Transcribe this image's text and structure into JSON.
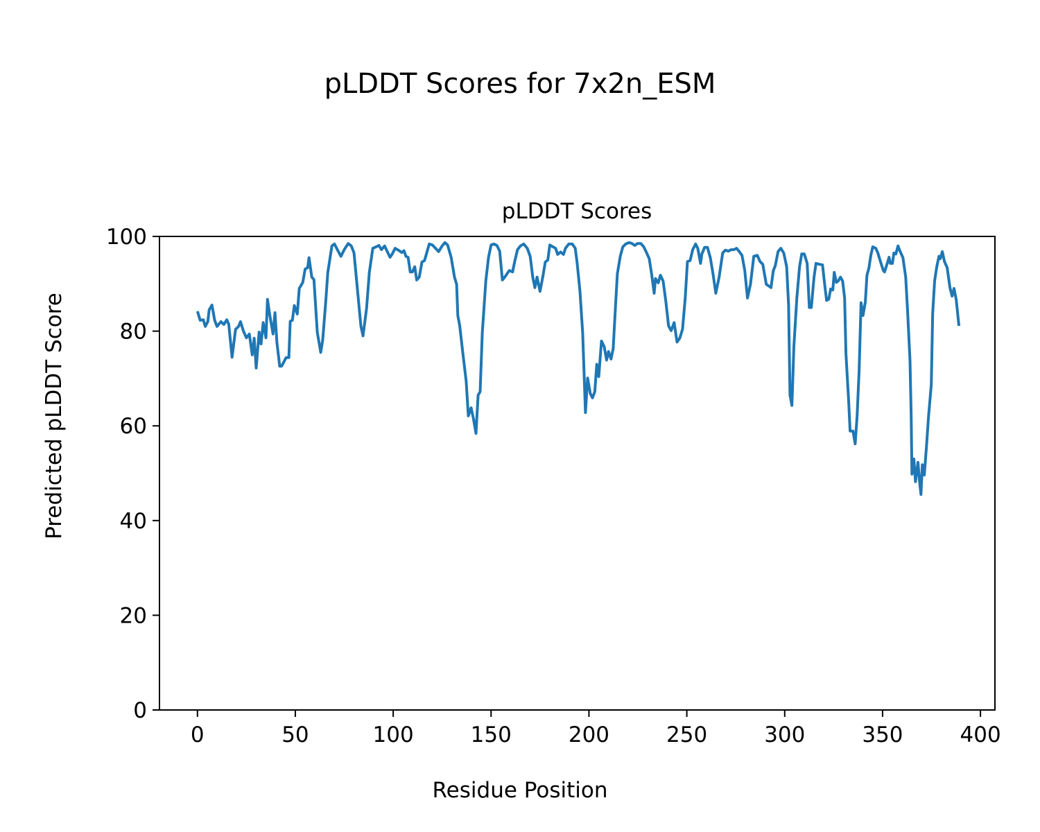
{
  "figure_title": "pLDDT Scores for 7x2n_ESM",
  "chart_data": {
    "type": "line",
    "title": "pLDDT Scores",
    "xlabel": "Residue Position",
    "ylabel": "Predicted pLDDT Score",
    "xlim": [
      -19.4,
      407.4
    ],
    "ylim": [
      0,
      100
    ],
    "xticks": [
      0,
      50,
      100,
      150,
      200,
      250,
      300,
      350,
      400
    ],
    "xtick_labels": [
      "0",
      "50",
      "100",
      "150",
      "200",
      "250",
      "300",
      "350",
      "400"
    ],
    "yticks": [
      0,
      20,
      40,
      60,
      80,
      100
    ],
    "ytick_labels": [
      "0",
      "20",
      "40",
      "60",
      "80",
      "100"
    ],
    "grid": false,
    "line_color": "#1f77b4",
    "series": [
      {
        "name": "pLDDT",
        "points": [
          [
            0,
            84.2
          ],
          [
            1.4,
            82.3
          ],
          [
            3,
            82.4
          ],
          [
            4,
            81
          ],
          [
            5.3,
            82
          ],
          [
            6,
            84.5
          ],
          [
            7.4,
            85.5
          ],
          [
            8.8,
            82.3
          ],
          [
            10,
            81
          ],
          [
            12,
            82
          ],
          [
            13.5,
            81.4
          ],
          [
            15,
            82.4
          ],
          [
            16,
            81.5
          ],
          [
            17.7,
            74.5
          ],
          [
            19.5,
            80.4
          ],
          [
            21,
            81
          ],
          [
            22,
            82
          ],
          [
            23.5,
            80
          ],
          [
            25,
            78.6
          ],
          [
            26.5,
            79.4
          ],
          [
            28,
            75
          ],
          [
            29,
            78.5
          ],
          [
            30,
            72.2
          ],
          [
            31.5,
            79.8
          ],
          [
            32.5,
            77.3
          ],
          [
            33.6,
            81.8
          ],
          [
            35,
            78.6
          ],
          [
            35.8,
            86.7
          ],
          [
            37,
            83.3
          ],
          [
            38.6,
            79.4
          ],
          [
            39.6,
            83.9
          ],
          [
            40.6,
            77.6
          ],
          [
            42,
            72.6
          ],
          [
            43,
            72.6
          ],
          [
            45.3,
            74.4
          ],
          [
            46.7,
            74.4
          ],
          [
            47.4,
            82.1
          ],
          [
            48.5,
            82.3
          ],
          [
            49.5,
            85.4
          ],
          [
            51,
            83.6
          ],
          [
            52,
            89
          ],
          [
            53.8,
            90.3
          ],
          [
            55,
            93.1
          ],
          [
            56.3,
            93.4
          ],
          [
            57,
            95.5
          ],
          [
            58.4,
            91.4
          ],
          [
            59.5,
            90.9
          ],
          [
            61.2,
            79.8
          ],
          [
            63,
            75.5
          ],
          [
            64,
            78.2
          ],
          [
            65.5,
            86
          ],
          [
            66.6,
            92.4
          ],
          [
            68.7,
            98
          ],
          [
            70,
            98.4
          ],
          [
            71.5,
            97.2
          ],
          [
            73.3,
            95.8
          ],
          [
            75,
            97.2
          ],
          [
            77,
            98.5
          ],
          [
            78.6,
            98
          ],
          [
            80,
            96.5
          ],
          [
            82,
            87.6
          ],
          [
            83.5,
            81.1
          ],
          [
            84.6,
            79
          ],
          [
            86.4,
            84.8
          ],
          [
            87.8,
            92.4
          ],
          [
            89.6,
            97.5
          ],
          [
            91.3,
            97.8
          ],
          [
            92.7,
            98.1
          ],
          [
            94,
            97.2
          ],
          [
            95.6,
            98
          ],
          [
            97,
            96.8
          ],
          [
            98.4,
            95.6
          ],
          [
            99.5,
            96.3
          ],
          [
            101,
            97.5
          ],
          [
            103,
            97
          ],
          [
            104.4,
            96.6
          ],
          [
            105.5,
            97
          ],
          [
            106.5,
            95.8
          ],
          [
            107.6,
            95.6
          ],
          [
            108.7,
            92.5
          ],
          [
            109.8,
            92.5
          ],
          [
            111,
            93.6
          ],
          [
            112,
            90.8
          ],
          [
            113.3,
            91.4
          ],
          [
            114.7,
            94.6
          ],
          [
            116,
            94.9
          ],
          [
            118.4,
            98.4
          ],
          [
            120,
            98.2
          ],
          [
            121.4,
            97.6
          ],
          [
            123.2,
            96.8
          ],
          [
            125,
            98
          ],
          [
            126.4,
            98.7
          ],
          [
            127.8,
            98.2
          ],
          [
            129.6,
            95.6
          ],
          [
            131.3,
            91.4
          ],
          [
            132.4,
            89.9
          ],
          [
            133,
            83.3
          ],
          [
            134,
            81.1
          ],
          [
            135.6,
            75.3
          ],
          [
            137.3,
            69.4
          ],
          [
            138.4,
            62.1
          ],
          [
            139.8,
            63.8
          ],
          [
            141,
            61.5
          ],
          [
            142.3,
            58.4
          ],
          [
            143.4,
            66.5
          ],
          [
            144.4,
            67.2
          ],
          [
            145.5,
            79.6
          ],
          [
            147.3,
            90.6
          ],
          [
            148.7,
            95.6
          ],
          [
            150,
            98.2
          ],
          [
            151.5,
            98.4
          ],
          [
            153,
            98.1
          ],
          [
            154.4,
            96.9
          ],
          [
            155.8,
            90.8
          ],
          [
            157,
            91.4
          ],
          [
            159.3,
            92.8
          ],
          [
            161,
            92.5
          ],
          [
            162,
            94.6
          ],
          [
            163.5,
            97.2
          ],
          [
            165,
            98
          ],
          [
            166.7,
            98.4
          ],
          [
            168.5,
            97.5
          ],
          [
            170,
            95.8
          ],
          [
            171.3,
            91.4
          ],
          [
            172.4,
            89.2
          ],
          [
            173.5,
            91.4
          ],
          [
            175,
            88.4
          ],
          [
            176.4,
            91.4
          ],
          [
            177.7,
            94.6
          ],
          [
            179,
            95
          ],
          [
            180,
            98.2
          ],
          [
            181.6,
            97.8
          ],
          [
            183,
            97.5
          ],
          [
            184,
            96.2
          ],
          [
            185.5,
            96.7
          ],
          [
            187,
            96.2
          ],
          [
            188,
            97.5
          ],
          [
            189.7,
            98.4
          ],
          [
            191.5,
            98.4
          ],
          [
            193,
            97.5
          ],
          [
            194,
            94.3
          ],
          [
            195.4,
            88.4
          ],
          [
            196.8,
            79.6
          ],
          [
            198.2,
            62.8
          ],
          [
            199.3,
            70.1
          ],
          [
            200.7,
            66.8
          ],
          [
            201.8,
            65.9
          ],
          [
            203,
            67.2
          ],
          [
            204,
            73
          ],
          [
            205,
            70.4
          ],
          [
            206.4,
            77.9
          ],
          [
            207.8,
            76.7
          ],
          [
            209,
            73.9
          ],
          [
            210,
            75.7
          ],
          [
            211.3,
            74.1
          ],
          [
            212.4,
            76.3
          ],
          [
            213.5,
            84.9
          ],
          [
            214.5,
            92.1
          ],
          [
            216,
            95.8
          ],
          [
            217.3,
            97.8
          ],
          [
            218.8,
            98.4
          ],
          [
            220.5,
            98.7
          ],
          [
            222,
            98.5
          ],
          [
            223.4,
            98.1
          ],
          [
            224.8,
            98.5
          ],
          [
            226.5,
            98.5
          ],
          [
            228,
            97.8
          ],
          [
            229.4,
            96.6
          ],
          [
            230.8,
            95.3
          ],
          [
            232,
            92.1
          ],
          [
            233.3,
            88
          ],
          [
            234,
            91.1
          ],
          [
            235.4,
            90.2
          ],
          [
            236.5,
            91.8
          ],
          [
            237.9,
            90.6
          ],
          [
            239.3,
            86.2
          ],
          [
            240.7,
            81.1
          ],
          [
            242,
            80.1
          ],
          [
            243.5,
            81.8
          ],
          [
            245,
            77.7
          ],
          [
            246.4,
            78.5
          ],
          [
            247.8,
            80.4
          ],
          [
            249.2,
            87
          ],
          [
            250.3,
            94.7
          ],
          [
            251.7,
            94.9
          ],
          [
            253,
            97.2
          ],
          [
            254.5,
            98.4
          ],
          [
            255.6,
            97.5
          ],
          [
            257,
            94.3
          ],
          [
            257.7,
            96.3
          ],
          [
            259.1,
            97.7
          ],
          [
            260.5,
            97.7
          ],
          [
            262,
            95.5
          ],
          [
            263.4,
            92.1
          ],
          [
            264.8,
            88
          ],
          [
            266.5,
            91.4
          ],
          [
            268.3,
            96.5
          ],
          [
            269.7,
            97.1
          ],
          [
            271.2,
            96.9
          ],
          [
            272.6,
            97.2
          ],
          [
            274,
            97.2
          ],
          [
            275.4,
            97.5
          ],
          [
            276.8,
            96.8
          ],
          [
            278.2,
            96
          ],
          [
            279.6,
            92.8
          ],
          [
            281,
            87
          ],
          [
            282.5,
            89.9
          ],
          [
            284.2,
            95.8
          ],
          [
            286,
            96
          ],
          [
            287.4,
            94.7
          ],
          [
            288.8,
            94.1
          ],
          [
            290.6,
            89.9
          ],
          [
            293,
            89.2
          ],
          [
            294.2,
            92.8
          ],
          [
            295.2,
            93.8
          ],
          [
            296.6,
            96.8
          ],
          [
            298,
            97.5
          ],
          [
            299.5,
            96.5
          ],
          [
            301,
            93.6
          ],
          [
            302,
            85.5
          ],
          [
            302.7,
            66.5
          ],
          [
            303.7,
            64.3
          ],
          [
            304.7,
            76.7
          ],
          [
            306.2,
            87
          ],
          [
            307.6,
            93.6
          ],
          [
            308.7,
            96.3
          ],
          [
            310,
            96.3
          ],
          [
            311.5,
            94.3
          ],
          [
            312.6,
            85
          ],
          [
            313.6,
            85
          ],
          [
            315,
            91.4
          ],
          [
            316,
            94.3
          ],
          [
            317.9,
            94.1
          ],
          [
            319.3,
            94
          ],
          [
            320.4,
            89.9
          ],
          [
            321.4,
            86.5
          ],
          [
            322.5,
            86.7
          ],
          [
            323.5,
            88.9
          ],
          [
            324.6,
            88.7
          ],
          [
            325.3,
            92.4
          ],
          [
            326.4,
            90.3
          ],
          [
            327.4,
            90.6
          ],
          [
            328.5,
            91.4
          ],
          [
            329.6,
            90.6
          ],
          [
            330.6,
            87
          ],
          [
            331.3,
            75.3
          ],
          [
            332.7,
            65
          ],
          [
            333.4,
            58.9
          ],
          [
            334.9,
            58.9
          ],
          [
            336,
            56.2
          ],
          [
            337,
            62
          ],
          [
            338,
            71.6
          ],
          [
            339,
            86
          ],
          [
            340,
            83.3
          ],
          [
            341.2,
            86.2
          ],
          [
            342,
            91.8
          ],
          [
            343,
            93.3
          ],
          [
            344,
            96
          ],
          [
            345,
            97.8
          ],
          [
            346.5,
            97.5
          ],
          [
            347.6,
            96.5
          ],
          [
            349,
            94.6
          ],
          [
            350.4,
            92.8
          ],
          [
            351,
            92.5
          ],
          [
            352.6,
            94.6
          ],
          [
            353.3,
            95.6
          ],
          [
            354,
            94.3
          ],
          [
            355,
            94.3
          ],
          [
            355.8,
            96.5
          ],
          [
            356.8,
            96.3
          ],
          [
            357.9,
            98
          ],
          [
            358.9,
            96.9
          ],
          [
            360.4,
            95.5
          ],
          [
            361.8,
            91.4
          ],
          [
            362.8,
            84
          ],
          [
            364,
            73.8
          ],
          [
            364.6,
            62.1
          ],
          [
            365,
            49.8
          ],
          [
            366,
            53
          ],
          [
            366.8,
            48.2
          ],
          [
            368.1,
            52.3
          ],
          [
            368.9,
            48.2
          ],
          [
            369.6,
            45.5
          ],
          [
            370.3,
            51.8
          ],
          [
            371.3,
            49.6
          ],
          [
            372.4,
            55.5
          ],
          [
            373.5,
            62.1
          ],
          [
            374.9,
            68.7
          ],
          [
            375.6,
            83.7
          ],
          [
            376.6,
            90.6
          ],
          [
            377.7,
            93.6
          ],
          [
            378.8,
            95.8
          ],
          [
            379.5,
            95.3
          ],
          [
            380.5,
            96.8
          ],
          [
            381.6,
            94.7
          ],
          [
            383,
            93.4
          ],
          [
            384.4,
            89.2
          ],
          [
            385.5,
            87.4
          ],
          [
            386.5,
            89
          ],
          [
            387.6,
            86.7
          ],
          [
            389,
            81.1
          ]
        ]
      }
    ]
  }
}
